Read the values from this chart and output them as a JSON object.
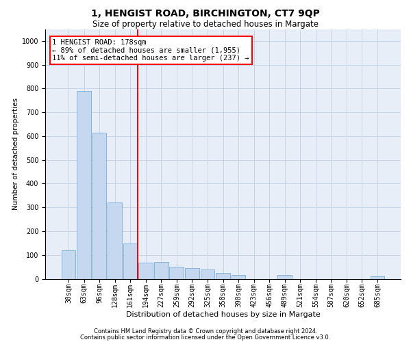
{
  "title": "1, HENGIST ROAD, BIRCHINGTON, CT7 9QP",
  "subtitle": "Size of property relative to detached houses in Margate",
  "xlabel": "Distribution of detached houses by size in Margate",
  "ylabel": "Number of detached properties",
  "categories": [
    "30sqm",
    "63sqm",
    "96sqm",
    "128sqm",
    "161sqm",
    "194sqm",
    "227sqm",
    "259sqm",
    "292sqm",
    "325sqm",
    "358sqm",
    "390sqm",
    "423sqm",
    "456sqm",
    "489sqm",
    "521sqm",
    "554sqm",
    "587sqm",
    "620sqm",
    "652sqm",
    "685sqm"
  ],
  "values": [
    120,
    790,
    615,
    320,
    148,
    68,
    70,
    50,
    45,
    40,
    25,
    15,
    0,
    0,
    15,
    0,
    0,
    0,
    0,
    0,
    10
  ],
  "bar_color": "#c5d8f0",
  "bar_edge_color": "#7aadd4",
  "grid_color": "#c8d4e8",
  "vline_color": "red",
  "annotation_text": "1 HENGIST ROAD: 178sqm\n← 89% of detached houses are smaller (1,955)\n11% of semi-detached houses are larger (237) →",
  "annotation_box_color": "red",
  "annotation_fontsize": 7.5,
  "ylim": [
    0,
    1050
  ],
  "yticks": [
    0,
    100,
    200,
    300,
    400,
    500,
    600,
    700,
    800,
    900,
    1000
  ],
  "footer1": "Contains HM Land Registry data © Crown copyright and database right 2024.",
  "footer2": "Contains public sector information licensed under the Open Government Licence v3.0.",
  "background_color": "#e8eef8",
  "title_fontsize": 10,
  "subtitle_fontsize": 8.5,
  "xlabel_fontsize": 8,
  "ylabel_fontsize": 7.5,
  "tick_fontsize": 7,
  "footer_fontsize": 6
}
